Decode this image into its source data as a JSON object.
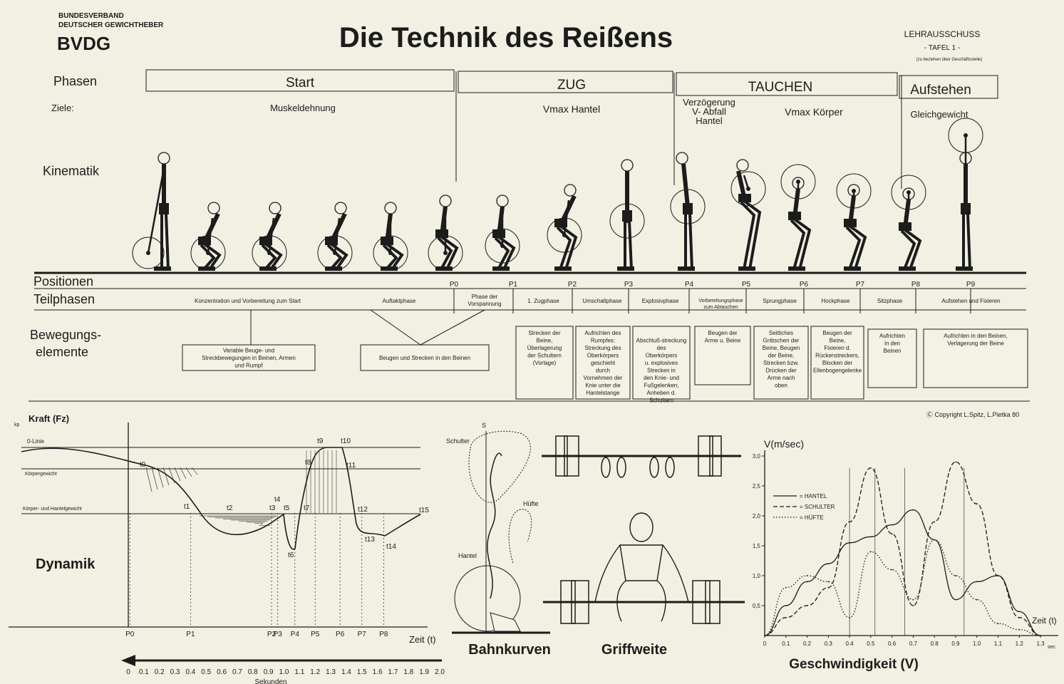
{
  "org": {
    "line1": "BUNDESVERBAND",
    "line2": "DEUTSCHER GEWICHTHEBER",
    "abbr": "BVDG"
  },
  "title": "Die Technik des Reißens",
  "committee": {
    "name": "LEHRAUSSCHUSS",
    "sheet": "- TAFEL 1 -",
    "note": "(zu beziehen über Geschäftsstelle)"
  },
  "row_labels": {
    "phases": "Phasen",
    "goals": "Ziele:",
    "kinematics": "Kinematik",
    "positions": "Positionen",
    "subphases": "Teilphasen",
    "movement1": "Bewegungs-",
    "movement2": "elemente",
    "dynamics": "Dynamik"
  },
  "phases": [
    {
      "label": "Start",
      "goal": "Muskeldehnung"
    },
    {
      "label": "ZUG",
      "goal": "Vmax Hantel"
    },
    {
      "label": "TAUCHEN",
      "goal": "Verzögerung V- Abfall Hantel",
      "goal2": "Vmax Körper"
    },
    {
      "label": "Aufstehen",
      "goal": "Gleichgewicht"
    }
  ],
  "positions": [
    "P0",
    "P1",
    "P2",
    "P3",
    "P4",
    "P5",
    "P6",
    "P7",
    "P8",
    "P9"
  ],
  "subphases": [
    "Konzentration und Vorbereitung zum Start",
    "Auftaktphase",
    "Phase der Vorspannung",
    "1. Zugphase",
    "Umschaltphase",
    "Explosivphase",
    "Vorbereitungsphase zum Abtauchen",
    "Sprungphase",
    "Hockphase",
    "Sitzphase",
    "Aufstehen und Fixieren"
  ],
  "movement_elements": [
    "Variable Beuge- und Streckbewegungen in Beinen, Armen und Rumpf",
    "Beugen und Strecken in den Beinen",
    "Strecken der Beine, Überlagerung der Schultern (Vorlage)",
    "Aufrichten des Rumpfes: Streckung des Oberkörpers geschieht durch Vornehmen der Knie unter die Hantelstange",
    "Abschluß-streckung des Oberkörpers u. explosives Strecken in den Knie- und Fußgelenken, Anheben d. Schultern",
    "Beugen der Arme u. Beine",
    "Seitliches Grätschen der Beine, Beugen der Beine, Strecken bzw. Drücken der Arme nach oben",
    "Beugen der Beine, Fixieren d. Rückenstreckers, Blocken der Ellenbogengelenke",
    "Aufrichten in den Beinen",
    "Aufrichten in den Beinen, Verlagerung der Beine"
  ],
  "copyright": "Copyright L.Spitz, L.Pietka 80",
  "force_chart": {
    "ylabel": "Kraft (Fz)",
    "unit": "kp",
    "zero_line": "0-Linie",
    "body_weight": "Körpergewicht",
    "body_bar_weight": "Körper- und Hantelgewicht",
    "xlabel": "Zeit (t)",
    "seconds_label": "Sekunden",
    "time_ticks": [
      "0",
      "0.1",
      "0.2",
      "0.3",
      "0.4",
      "0.5",
      "0.6",
      "0.7",
      "0.8",
      "0.9",
      "1.0",
      "1.1",
      "1.2",
      "1.3",
      "1.4",
      "1.5",
      "1.6",
      "1.7",
      "1.8",
      "1.9",
      "2.0"
    ],
    "t_marks": [
      "t0",
      "t1",
      "t2",
      "t3",
      "t4",
      "t5",
      "t6",
      "t7",
      "t8",
      "t9",
      "t10",
      "t11",
      "t12",
      "t13",
      "t14",
      "t15"
    ]
  },
  "path_chart": {
    "shoulder": "Schulter",
    "hip": "Hüfte",
    "bar": "Hantel",
    "s_label": "S",
    "caption": "Bahnkurven"
  },
  "grip_caption": "Griffweite",
  "chart_data": {
    "type": "line",
    "title": "Geschwindigkeit (V)",
    "xlabel": "Zeit (t)",
    "ylabel": "V(m/sec)",
    "x_unit": "sec",
    "xlim": [
      0,
      1.3
    ],
    "ylim": [
      0,
      3.0
    ],
    "x_ticks": [
      "0",
      "0.1",
      "0.2",
      "0.3",
      "0.4",
      "0.5",
      "0.6",
      "0.7",
      "0.8",
      "0.9",
      "1.0",
      "1.1",
      "1.2",
      "1.3"
    ],
    "y_ticks": [
      "0,5",
      "1,0",
      "1,5",
      "2,0",
      "2,5",
      "3,0"
    ],
    "legend_position": "top-left",
    "x": [
      0,
      0.1,
      0.2,
      0.3,
      0.4,
      0.5,
      0.6,
      0.7,
      0.8,
      0.9,
      1.0,
      1.1,
      1.2,
      1.3
    ],
    "series": [
      {
        "name": "= HANTEL",
        "values": [
          0,
          0.5,
          0.9,
          1.2,
          1.55,
          1.65,
          1.85,
          2.1,
          1.6,
          0.6,
          0.9,
          1.0,
          0.4,
          0.0
        ]
      },
      {
        "name": "= SCHULTER",
        "values": [
          0,
          0.3,
          0.5,
          0.8,
          1.9,
          2.8,
          1.7,
          0.5,
          1.9,
          2.9,
          2.2,
          1.0,
          0.3,
          0.0
        ]
      },
      {
        "name": "= HÜFTE",
        "values": [
          0,
          0.8,
          1.0,
          0.9,
          0.3,
          1.4,
          1.1,
          0.6,
          1.6,
          1.0,
          0.6,
          0.2,
          0.1,
          0.0
        ]
      }
    ]
  }
}
